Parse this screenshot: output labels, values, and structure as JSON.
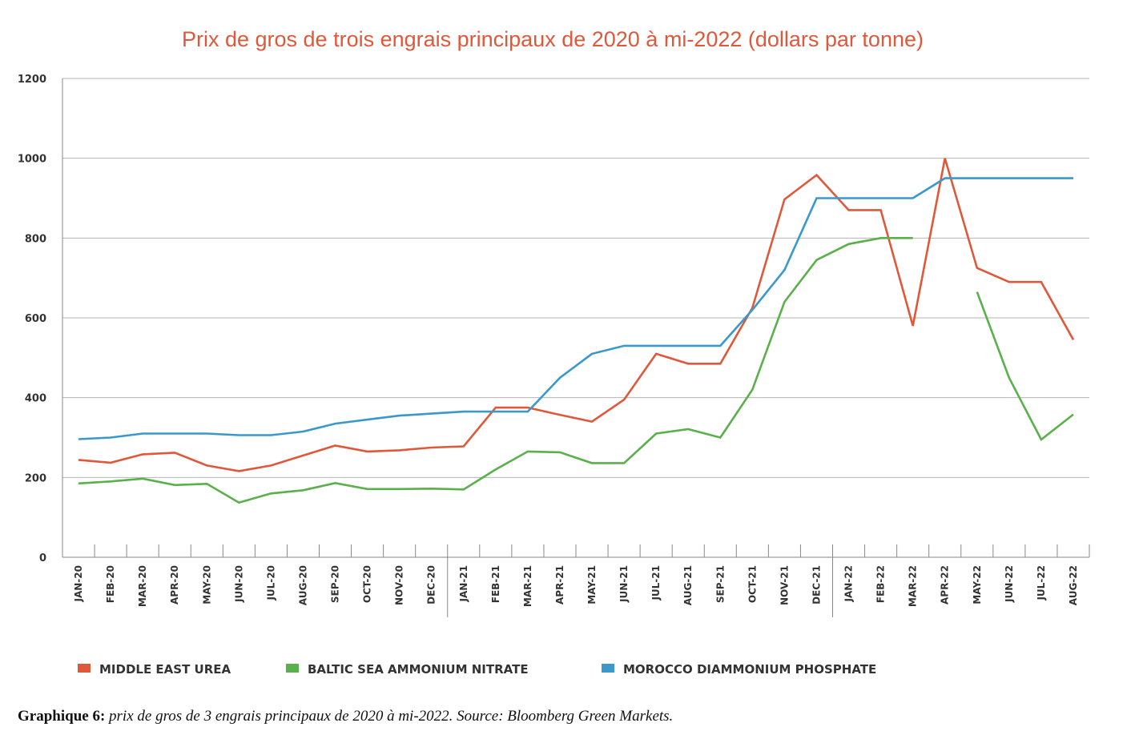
{
  "chart_data": {
    "type": "line",
    "title": "Prix de gros de trois engrais principaux de 2020 à mi-2022  (dollars par tonne)",
    "xlabel": "",
    "ylabel": "",
    "ylim": [
      0,
      1200
    ],
    "yticks": [
      "0",
      "200",
      "400",
      "600",
      "800",
      "1000",
      "1200"
    ],
    "grid": "horizontal",
    "legend_position": "bottom",
    "categories": [
      "JAN-20",
      "FEB-20",
      "MAR-20",
      "APR-20",
      "MAY-20",
      "JUN-20",
      "JUL-20",
      "AUG-20",
      "SEP-20",
      "OCT-20",
      "NOV-20",
      "DEC-20",
      "JAN-21",
      "FEB-21",
      "MAR-21",
      "APR-21",
      "MAY-21",
      "JUN-21",
      "JUL-21",
      "AUG-21",
      "SEP-21",
      "OCT-21",
      "NOV-21",
      "DEC-21",
      "JAN-22",
      "FEB-22",
      "MAR-22",
      "APR-22",
      "MAY-22",
      "JUN-22",
      "JUL-22",
      "AUG-22"
    ],
    "series": [
      {
        "name": "MIDDLE EAST UREA",
        "color": "#e0583a",
        "values": [
          244,
          237,
          258,
          262,
          230,
          216,
          230,
          255,
          280,
          265,
          268,
          275,
          278,
          375,
          375,
          357,
          340,
          395,
          510,
          485,
          485,
          625,
          897,
          958,
          870,
          870,
          580,
          1000,
          725,
          690,
          690,
          545
        ]
      },
      {
        "name": "BALTIC SEA AMMONIUM NITRATE",
        "color": "#5ab04a",
        "values": [
          185,
          190,
          197,
          181,
          184,
          137,
          160,
          168,
          186,
          171,
          171,
          172,
          170,
          220,
          265,
          263,
          236,
          236,
          310,
          321,
          300,
          420,
          640,
          745,
          785,
          800,
          800,
          null,
          665,
          450,
          295,
          358
        ]
      },
      {
        "name": "MOROCCO DIAMMONIUM PHOSPHATE",
        "color": "#3a98cb",
        "values": [
          296,
          300,
          310,
          310,
          310,
          306,
          306,
          315,
          335,
          345,
          355,
          360,
          365,
          365,
          365,
          450,
          510,
          530,
          530,
          530,
          530,
          620,
          720,
          900,
          900,
          900,
          900,
          950,
          950,
          950,
          950,
          950
        ]
      }
    ]
  },
  "caption": {
    "label": "Graphique 6:",
    "text": "prix de gros de 3 engrais principaux de 2020 à mi-2022. Source: Bloomberg Green Markets."
  }
}
